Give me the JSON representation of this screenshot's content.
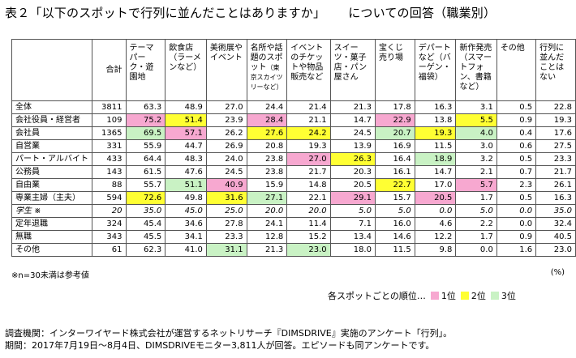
{
  "title": {
    "main": "表２「以下のスポットで行列に並んだことはありますか」",
    "sub": "についての回答（職業別）"
  },
  "columns": [
    {
      "name": "合計"
    },
    {
      "name": "テーマパーク・遊園地"
    },
    {
      "name": "飲食店（ラーメンなど）"
    },
    {
      "name": "美術展やイベント"
    },
    {
      "name": "名所や話題のスポット",
      "small": "（東京スカイツリーなど）"
    },
    {
      "name": "イベントのチケットや物品販売など"
    },
    {
      "name": "スイーツ・菓子店・パン屋さん"
    },
    {
      "name": "宝くじ売り場"
    },
    {
      "name": "デパートなど（バーゲン・福袋）"
    },
    {
      "name": "新作発売（スマートフォン、書籍など）"
    },
    {
      "name": "その他"
    },
    {
      "name": "行列に並んだことはない"
    }
  ],
  "rows": [
    {
      "label": "全体",
      "italic": false,
      "cells": [
        {
          "v": "3811"
        },
        {
          "v": "63.3"
        },
        {
          "v": "48.9"
        },
        {
          "v": "27.0"
        },
        {
          "v": "24.4"
        },
        {
          "v": "21.4"
        },
        {
          "v": "21.3"
        },
        {
          "v": "17.8"
        },
        {
          "v": "16.3"
        },
        {
          "v": "3.1"
        },
        {
          "v": "0.5"
        },
        {
          "v": "22.8"
        }
      ]
    },
    {
      "label": "会社役員・経営者",
      "italic": false,
      "cells": [
        {
          "v": "109"
        },
        {
          "v": "75.2",
          "r": 1
        },
        {
          "v": "51.4",
          "r": 2
        },
        {
          "v": "23.9"
        },
        {
          "v": "28.4",
          "r": 1
        },
        {
          "v": "21.1"
        },
        {
          "v": "14.7"
        },
        {
          "v": "22.9",
          "r": 1
        },
        {
          "v": "13.8"
        },
        {
          "v": "5.5",
          "r": 2
        },
        {
          "v": "0.9"
        },
        {
          "v": "19.3"
        }
      ]
    },
    {
      "label": "会社員",
      "italic": false,
      "cells": [
        {
          "v": "1365"
        },
        {
          "v": "69.5",
          "r": 3
        },
        {
          "v": "57.1",
          "r": 1
        },
        {
          "v": "26.2"
        },
        {
          "v": "27.6",
          "r": 2
        },
        {
          "v": "24.2",
          "r": 2
        },
        {
          "v": "24.5"
        },
        {
          "v": "20.7",
          "r": 3
        },
        {
          "v": "19.3",
          "r": 2
        },
        {
          "v": "4.0",
          "r": 3
        },
        {
          "v": "0.4"
        },
        {
          "v": "17.6"
        }
      ]
    },
    {
      "label": "自営業",
      "italic": false,
      "cells": [
        {
          "v": "331"
        },
        {
          "v": "55.9"
        },
        {
          "v": "44.7"
        },
        {
          "v": "26.9"
        },
        {
          "v": "20.8"
        },
        {
          "v": "19.3"
        },
        {
          "v": "13.9"
        },
        {
          "v": "16.9"
        },
        {
          "v": "11.5"
        },
        {
          "v": "3.0"
        },
        {
          "v": "0.6"
        },
        {
          "v": "27.5"
        }
      ]
    },
    {
      "label": "パート・アルバイト",
      "italic": false,
      "cells": [
        {
          "v": "433"
        },
        {
          "v": "64.4"
        },
        {
          "v": "48.3"
        },
        {
          "v": "24.0"
        },
        {
          "v": "23.8"
        },
        {
          "v": "27.0",
          "r": 1
        },
        {
          "v": "26.3",
          "r": 2
        },
        {
          "v": "16.4"
        },
        {
          "v": "18.9",
          "r": 3
        },
        {
          "v": "3.2"
        },
        {
          "v": "0.5"
        },
        {
          "v": "23.3"
        }
      ]
    },
    {
      "label": "公務員",
      "italic": false,
      "cells": [
        {
          "v": "143"
        },
        {
          "v": "61.5"
        },
        {
          "v": "47.6"
        },
        {
          "v": "24.5"
        },
        {
          "v": "23.8"
        },
        {
          "v": "21.7"
        },
        {
          "v": "20.3"
        },
        {
          "v": "16.1"
        },
        {
          "v": "14.7"
        },
        {
          "v": "2.1"
        },
        {
          "v": "0.7"
        },
        {
          "v": "21.7"
        }
      ]
    },
    {
      "label": "自由業",
      "italic": false,
      "cells": [
        {
          "v": "88"
        },
        {
          "v": "55.7"
        },
        {
          "v": "51.1",
          "r": 3
        },
        {
          "v": "40.9",
          "r": 1
        },
        {
          "v": "15.9"
        },
        {
          "v": "14.8"
        },
        {
          "v": "20.5"
        },
        {
          "v": "22.7",
          "r": 2
        },
        {
          "v": "17.0"
        },
        {
          "v": "5.7",
          "r": 1
        },
        {
          "v": "2.3"
        },
        {
          "v": "26.1"
        }
      ]
    },
    {
      "label": "専業主婦（主夫）",
      "italic": false,
      "cells": [
        {
          "v": "594"
        },
        {
          "v": "72.6",
          "r": 2
        },
        {
          "v": "49.8"
        },
        {
          "v": "31.6",
          "r": 2
        },
        {
          "v": "27.1",
          "r": 3
        },
        {
          "v": "22.1"
        },
        {
          "v": "29.1",
          "r": 1
        },
        {
          "v": "15.7"
        },
        {
          "v": "20.5",
          "r": 1
        },
        {
          "v": "1.7"
        },
        {
          "v": "0.5"
        },
        {
          "v": "16.3"
        }
      ]
    },
    {
      "label": "学生 ※",
      "italic": true,
      "cells": [
        {
          "v": "20"
        },
        {
          "v": "35.0"
        },
        {
          "v": "45.0"
        },
        {
          "v": "25.0"
        },
        {
          "v": "20.0"
        },
        {
          "v": "20.0"
        },
        {
          "v": "5.0"
        },
        {
          "v": "5.0"
        },
        {
          "v": "0.0"
        },
        {
          "v": "5.0"
        },
        {
          "v": "0.0"
        },
        {
          "v": "35.0"
        }
      ]
    },
    {
      "label": "定年退職",
      "italic": false,
      "cells": [
        {
          "v": "324"
        },
        {
          "v": "45.4"
        },
        {
          "v": "34.6"
        },
        {
          "v": "27.8"
        },
        {
          "v": "24.1"
        },
        {
          "v": "11.4"
        },
        {
          "v": "7.1"
        },
        {
          "v": "16.0"
        },
        {
          "v": "4.6"
        },
        {
          "v": "2.2"
        },
        {
          "v": "0.0"
        },
        {
          "v": "32.4"
        }
      ]
    },
    {
      "label": "無職",
      "italic": false,
      "cells": [
        {
          "v": "343"
        },
        {
          "v": "45.5"
        },
        {
          "v": "34.1"
        },
        {
          "v": "23.3"
        },
        {
          "v": "12.8"
        },
        {
          "v": "15.2"
        },
        {
          "v": "13.4"
        },
        {
          "v": "14.6"
        },
        {
          "v": "12.2"
        },
        {
          "v": "1.7"
        },
        {
          "v": "0.9"
        },
        {
          "v": "40.5"
        }
      ]
    },
    {
      "label": "その他",
      "italic": false,
      "cells": [
        {
          "v": "61"
        },
        {
          "v": "62.3"
        },
        {
          "v": "41.0"
        },
        {
          "v": "31.1",
          "r": 3
        },
        {
          "v": "21.3"
        },
        {
          "v": "23.0",
          "r": 3
        },
        {
          "v": "18.0"
        },
        {
          "v": "11.5"
        },
        {
          "v": "9.8"
        },
        {
          "v": "0.0"
        },
        {
          "v": "1.6"
        },
        {
          "v": "23.0"
        }
      ]
    }
  ],
  "note": "※n=30未満は参考値",
  "unit": "(%)",
  "legend": {
    "label": "各スポットごとの順位…",
    "items": [
      {
        "label": "1位",
        "color": "#f7a8d0"
      },
      {
        "label": "2位",
        "color": "#ffff33"
      },
      {
        "label": "3位",
        "color": "#c9f2c4"
      }
    ]
  },
  "footer": {
    "line1": "調査機関：インターワイヤード株式会社が運営するネットリサーチ『DIMSDRIVE』実施のアンケート「行列」。",
    "line2": "期間：2017年7月19日～8月4日、DIMSDRIVEモニター3,811人が回答。エピソードも同アンケートです。"
  }
}
